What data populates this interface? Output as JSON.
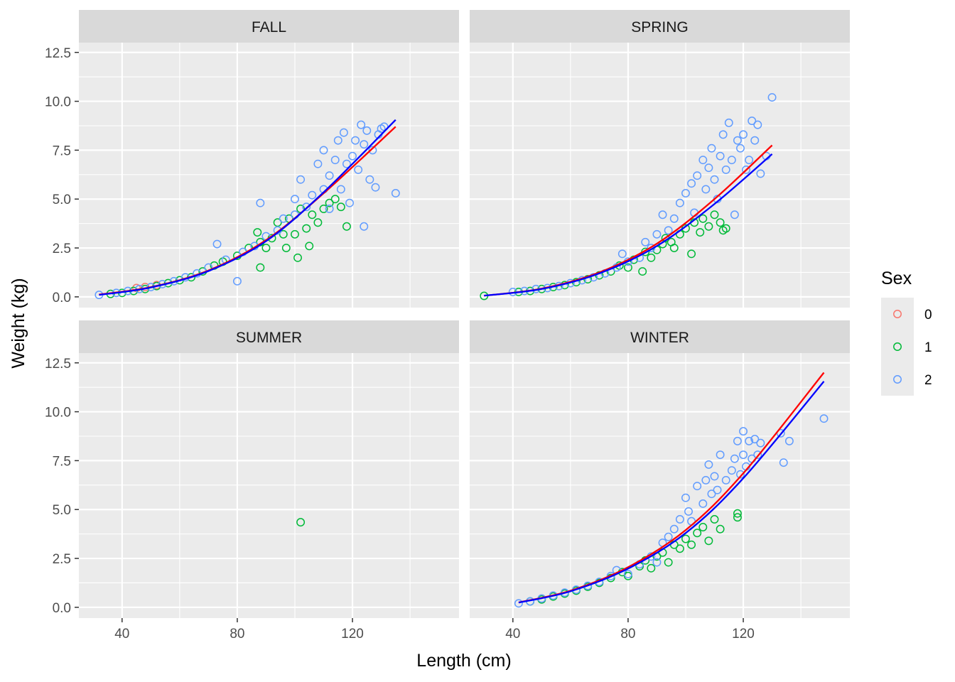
{
  "chart_data": {
    "type": "scatter",
    "subtype": "faceted scatter with fitted power curves",
    "xlabel": "Length (cm)",
    "ylabel": "Weight (kg)",
    "xlim": [
      25,
      157
    ],
    "ylim": [
      -0.55,
      13.0
    ],
    "x_ticks": [
      40,
      80,
      120
    ],
    "y_ticks": [
      0.0,
      2.5,
      5.0,
      7.5,
      10.0,
      12.5
    ],
    "y_tick_labels": [
      "0.0",
      "2.5",
      "5.0",
      "7.5",
      "10.0",
      "12.5"
    ],
    "grid": true,
    "legend": {
      "title": "Sex",
      "position": "right",
      "entries": [
        {
          "label": "0",
          "color": "#F8766D"
        },
        {
          "label": "1",
          "color": "#00BA38"
        },
        {
          "label": "2",
          "color": "#619CFF"
        }
      ]
    },
    "facets": [
      {
        "label": "FALL",
        "points_note": "dense scatter, approx",
        "points": {
          "0": [
            [
              45,
              0.45
            ],
            [
              48,
              0.5
            ],
            [
              52,
              0.6
            ]
          ],
          "1": [
            [
              36,
              0.15
            ],
            [
              40,
              0.2
            ],
            [
              44,
              0.3
            ],
            [
              48,
              0.4
            ],
            [
              52,
              0.55
            ],
            [
              56,
              0.7
            ],
            [
              60,
              0.85
            ],
            [
              64,
              1.0
            ],
            [
              68,
              1.3
            ],
            [
              72,
              1.6
            ],
            [
              75,
              1.8
            ],
            [
              80,
              2.1
            ],
            [
              84,
              2.5
            ],
            [
              87,
              3.3
            ],
            [
              88,
              2.8
            ],
            [
              88,
              1.5
            ],
            [
              90,
              2.5
            ],
            [
              92,
              3.0
            ],
            [
              94,
              3.8
            ],
            [
              96,
              3.2
            ],
            [
              97,
              2.5
            ],
            [
              98,
              4.0
            ],
            [
              100,
              3.2
            ],
            [
              101,
              2.0
            ],
            [
              102,
              4.5
            ],
            [
              104,
              3.5
            ],
            [
              105,
              2.6
            ],
            [
              106,
              4.2
            ],
            [
              108,
              3.8
            ],
            [
              110,
              4.5
            ],
            [
              112,
              4.8
            ],
            [
              114,
              5.0
            ],
            [
              116,
              4.6
            ],
            [
              118,
              3.6
            ]
          ],
          "2": [
            [
              32,
              0.1
            ],
            [
              38,
              0.2
            ],
            [
              42,
              0.3
            ],
            [
              46,
              0.4
            ],
            [
              50,
              0.5
            ],
            [
              54,
              0.65
            ],
            [
              58,
              0.8
            ],
            [
              62,
              1.0
            ],
            [
              66,
              1.2
            ],
            [
              70,
              1.5
            ],
            [
              73,
              2.7
            ],
            [
              76,
              1.9
            ],
            [
              80,
              0.8
            ],
            [
              82,
              2.3
            ],
            [
              86,
              2.6
            ],
            [
              88,
              4.8
            ],
            [
              90,
              3.1
            ],
            [
              94,
              3.4
            ],
            [
              96,
              4.0
            ],
            [
              100,
              4.2
            ],
            [
              100,
              5.0
            ],
            [
              102,
              6.0
            ],
            [
              104,
              4.6
            ],
            [
              106,
              5.2
            ],
            [
              108,
              6.8
            ],
            [
              110,
              5.5
            ],
            [
              110,
              7.5
            ],
            [
              112,
              6.2
            ],
            [
              112,
              4.5
            ],
            [
              114,
              7.0
            ],
            [
              115,
              8.0
            ],
            [
              116,
              5.5
            ],
            [
              117,
              8.4
            ],
            [
              118,
              6.8
            ],
            [
              119,
              4.8
            ],
            [
              120,
              7.2
            ],
            [
              121,
              8.0
            ],
            [
              122,
              6.5
            ],
            [
              123,
              8.8
            ],
            [
              124,
              3.6
            ],
            [
              124,
              7.8
            ],
            [
              125,
              8.5
            ],
            [
              126,
              6.0
            ],
            [
              127,
              7.5
            ],
            [
              128,
              5.6
            ],
            [
              129,
              8.3
            ],
            [
              130,
              8.6
            ],
            [
              131,
              8.7
            ],
            [
              135,
              5.3
            ]
          ]
        },
        "curves": {
          "0": {
            "color": "#FF0000",
            "x": [
              32,
              50,
              70,
              90,
              110,
              135
            ],
            "y": [
              0.12,
              0.5,
              1.35,
              2.9,
              5.3,
              8.7
            ]
          },
          "2": {
            "color": "#0000FF",
            "x": [
              32,
              50,
              70,
              90,
              110,
              135
            ],
            "y": [
              0.1,
              0.48,
              1.32,
              2.85,
              5.35,
              9.05
            ]
          }
        }
      },
      {
        "label": "SPRING",
        "points_note": "dense scatter, approx",
        "points": {
          "0": [],
          "1": [
            [
              30,
              0.05
            ],
            [
              42,
              0.25
            ],
            [
              46,
              0.3
            ],
            [
              50,
              0.4
            ],
            [
              54,
              0.5
            ],
            [
              58,
              0.6
            ],
            [
              62,
              0.75
            ],
            [
              66,
              0.9
            ],
            [
              70,
              1.1
            ],
            [
              74,
              1.3
            ],
            [
              77,
              1.6
            ],
            [
              80,
              1.5
            ],
            [
              82,
              1.9
            ],
            [
              85,
              1.3
            ],
            [
              86,
              2.3
            ],
            [
              88,
              2.0
            ],
            [
              90,
              2.4
            ],
            [
              92,
              2.7
            ],
            [
              93,
              3.0
            ],
            [
              95,
              2.8
            ],
            [
              96,
              2.5
            ],
            [
              98,
              3.2
            ],
            [
              100,
              3.5
            ],
            [
              102,
              2.2
            ],
            [
              103,
              3.8
            ],
            [
              105,
              3.3
            ],
            [
              106,
              4.0
            ],
            [
              108,
              3.6
            ],
            [
              110,
              4.2
            ],
            [
              112,
              3.8
            ],
            [
              113,
              3.4
            ],
            [
              114,
              3.5
            ]
          ],
          "2": [
            [
              40,
              0.25
            ],
            [
              44,
              0.3
            ],
            [
              48,
              0.4
            ],
            [
              52,
              0.45
            ],
            [
              56,
              0.55
            ],
            [
              60,
              0.7
            ],
            [
              64,
              0.85
            ],
            [
              68,
              1.0
            ],
            [
              72,
              1.2
            ],
            [
              76,
              1.5
            ],
            [
              78,
              2.2
            ],
            [
              80,
              1.8
            ],
            [
              84,
              2.0
            ],
            [
              86,
              2.8
            ],
            [
              88,
              2.5
            ],
            [
              90,
              3.2
            ],
            [
              92,
              4.2
            ],
            [
              94,
              3.4
            ],
            [
              96,
              4.0
            ],
            [
              98,
              4.8
            ],
            [
              100,
              5.3
            ],
            [
              102,
              5.8
            ],
            [
              103,
              4.3
            ],
            [
              104,
              6.2
            ],
            [
              106,
              7.0
            ],
            [
              107,
              5.5
            ],
            [
              108,
              6.6
            ],
            [
              109,
              7.6
            ],
            [
              110,
              6.0
            ],
            [
              111,
              5.0
            ],
            [
              112,
              7.2
            ],
            [
              113,
              8.3
            ],
            [
              114,
              6.5
            ],
            [
              115,
              8.9
            ],
            [
              116,
              7.0
            ],
            [
              117,
              4.2
            ],
            [
              118,
              8.0
            ],
            [
              119,
              7.6
            ],
            [
              120,
              8.3
            ],
            [
              121,
              6.5
            ],
            [
              122,
              7.0
            ],
            [
              123,
              9.0
            ],
            [
              124,
              8.0
            ],
            [
              125,
              8.8
            ],
            [
              126,
              6.3
            ],
            [
              128,
              7.2
            ],
            [
              130,
              10.2
            ]
          ]
        },
        "curves": {
          "0": {
            "color": "#FF0000",
            "x": [
              30,
              50,
              70,
              90,
              110,
              130
            ],
            "y": [
              0.06,
              0.42,
              1.25,
              2.72,
              5.0,
              7.75
            ]
          },
          "2": {
            "color": "#0000FF",
            "x": [
              30,
              50,
              70,
              90,
              110,
              130
            ],
            "y": [
              0.06,
              0.4,
              1.2,
              2.6,
              4.75,
              7.3
            ]
          }
        }
      },
      {
        "label": "SUMMER",
        "points": {
          "0": [],
          "1": [
            [
              102,
              4.35
            ]
          ],
          "2": []
        },
        "curves": {}
      },
      {
        "label": "WINTER",
        "points_note": "dense scatter, approx",
        "points": {
          "0": [],
          "1": [
            [
              46,
              0.3
            ],
            [
              50,
              0.4
            ],
            [
              54,
              0.55
            ],
            [
              58,
              0.7
            ],
            [
              62,
              0.85
            ],
            [
              66,
              1.05
            ],
            [
              70,
              1.25
            ],
            [
              74,
              1.5
            ],
            [
              78,
              1.8
            ],
            [
              80,
              1.6
            ],
            [
              84,
              2.1
            ],
            [
              86,
              2.4
            ],
            [
              88,
              2.0
            ],
            [
              90,
              2.6
            ],
            [
              92,
              2.8
            ],
            [
              94,
              2.3
            ],
            [
              96,
              3.2
            ],
            [
              98,
              3.0
            ],
            [
              100,
              3.5
            ],
            [
              102,
              3.2
            ],
            [
              104,
              3.8
            ],
            [
              106,
              4.1
            ],
            [
              108,
              3.4
            ],
            [
              110,
              4.5
            ],
            [
              112,
              4.0
            ],
            [
              118,
              4.6
            ],
            [
              118,
              4.8
            ]
          ],
          "2": [
            [
              42,
              0.2
            ],
            [
              46,
              0.3
            ],
            [
              50,
              0.45
            ],
            [
              54,
              0.6
            ],
            [
              58,
              0.75
            ],
            [
              62,
              0.9
            ],
            [
              66,
              1.1
            ],
            [
              70,
              1.3
            ],
            [
              74,
              1.6
            ],
            [
              76,
              1.9
            ],
            [
              80,
              1.7
            ],
            [
              84,
              2.2
            ],
            [
              88,
              2.6
            ],
            [
              90,
              2.3
            ],
            [
              92,
              3.3
            ],
            [
              94,
              3.6
            ],
            [
              96,
              4.0
            ],
            [
              98,
              4.5
            ],
            [
              100,
              5.6
            ],
            [
              101,
              4.9
            ],
            [
              102,
              4.4
            ],
            [
              104,
              6.2
            ],
            [
              106,
              5.3
            ],
            [
              107,
              6.5
            ],
            [
              108,
              7.3
            ],
            [
              109,
              5.8
            ],
            [
              110,
              6.7
            ],
            [
              111,
              6.0
            ],
            [
              112,
              7.8
            ],
            [
              114,
              6.5
            ],
            [
              116,
              7.0
            ],
            [
              117,
              7.6
            ],
            [
              118,
              8.5
            ],
            [
              119,
              6.8
            ],
            [
              120,
              9.0
            ],
            [
              120,
              7.8
            ],
            [
              121,
              7.2
            ],
            [
              122,
              8.5
            ],
            [
              123,
              7.6
            ],
            [
              124,
              8.6
            ],
            [
              125,
              7.8
            ],
            [
              126,
              8.4
            ],
            [
              133,
              8.9
            ],
            [
              134,
              7.4
            ],
            [
              136,
              8.5
            ],
            [
              148,
              9.65
            ]
          ]
        },
        "curves": {
          "0": {
            "color": "#FF0000",
            "x": [
              42,
              60,
              80,
              100,
              120,
              148
            ],
            "y": [
              0.25,
              0.85,
              2.05,
              3.95,
              6.85,
              12.0
            ]
          },
          "2": {
            "color": "#0000FF",
            "x": [
              42,
              60,
              80,
              100,
              120,
              148
            ],
            "y": [
              0.24,
              0.82,
              1.98,
              3.8,
              6.6,
              11.55
            ]
          }
        }
      }
    ]
  }
}
